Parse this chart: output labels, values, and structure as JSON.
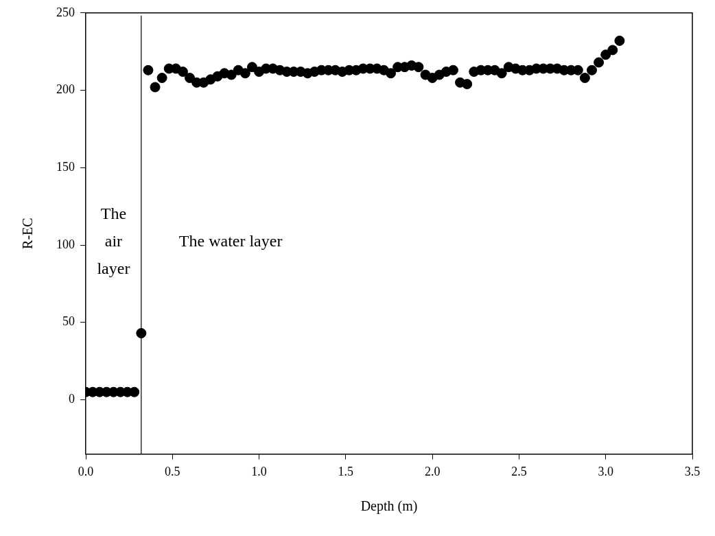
{
  "chart_data": {
    "type": "scatter",
    "xlabel": "Depth (m)",
    "ylabel": "R-EC",
    "x": [
      0,
      0.04,
      0.08,
      0.12,
      0.16,
      0.2,
      0.24,
      0.28,
      0.32,
      0.36,
      0.4,
      0.44,
      0.48,
      0.52,
      0.56,
      0.6,
      0.64,
      0.68,
      0.72,
      0.76,
      0.8,
      0.84,
      0.88,
      0.92,
      0.96,
      1,
      1.04,
      1.08,
      1.12,
      1.16,
      1.2,
      1.24,
      1.28,
      1.32,
      1.36,
      1.4,
      1.44,
      1.48,
      1.52,
      1.56,
      1.6,
      1.64,
      1.68,
      1.72,
      1.76,
      1.8,
      1.84,
      1.88,
      1.92,
      1.96,
      2,
      2.04,
      2.08,
      2.12,
      2.16,
      2.2,
      2.24,
      2.28,
      2.32,
      2.36,
      2.4,
      2.44,
      2.48,
      2.52,
      2.56,
      2.6,
      2.64,
      2.68,
      2.72,
      2.76,
      2.8,
      2.84,
      2.88,
      2.92,
      2.96,
      3,
      3.04,
      3.08
    ],
    "values": [
      5,
      5,
      5,
      5,
      5,
      5,
      5,
      5,
      43,
      213,
      202,
      208,
      214,
      214,
      212,
      208,
      205,
      205,
      207,
      209,
      211,
      210,
      213,
      211,
      215,
      212,
      214,
      214,
      213,
      212,
      212,
      212,
      211,
      212,
      213,
      213,
      213,
      212,
      213,
      213,
      214,
      214,
      214,
      213,
      211,
      215,
      215,
      216,
      215,
      210,
      208,
      210,
      212,
      213,
      205,
      204,
      212,
      213,
      213,
      213,
      211,
      215,
      214,
      213,
      213,
      214,
      214,
      214,
      214,
      213,
      213,
      213,
      208,
      213,
      218,
      223,
      226,
      232
    ],
    "color": "#000000",
    "marker": "circle",
    "xlim": [
      0,
      3.5
    ],
    "xticks": [
      {
        "value": 0,
        "label": "0.0"
      },
      {
        "value": 0.5,
        "label": "0.5"
      },
      {
        "value": 1,
        "label": "1.0"
      },
      {
        "value": 1.5,
        "label": "1.5"
      },
      {
        "value": 2,
        "label": "2.0"
      },
      {
        "value": 2.5,
        "label": "2.5"
      },
      {
        "value": 3,
        "label": "3.0"
      },
      {
        "value": 3.5,
        "label": "3.5"
      }
    ],
    "ylim": [
      -35,
      250
    ],
    "yticks": [
      0,
      50,
      100,
      150,
      200,
      250
    ],
    "ref_lines": [
      {
        "axis": "x",
        "value": 0.32,
        "color": "#000000"
      }
    ],
    "annotations": [
      "The air layer",
      "The water layer"
    ]
  }
}
